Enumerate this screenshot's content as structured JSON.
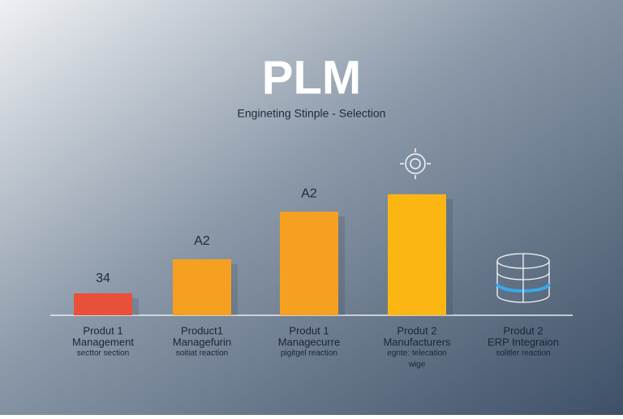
{
  "chart_data": {
    "type": "bar",
    "title": "PLM",
    "subtitle": "Engineting Stinple - Selection",
    "categories": [
      [
        "Produt 1",
        "Management",
        "secttor section"
      ],
      [
        "Product1",
        "Managefurin",
        "soitiat reaction"
      ],
      [
        "Produt 1",
        "Managecurre",
        "pigitgel reaction"
      ],
      [
        "Produt 2",
        "Manufacturers",
        "egnte: telecation",
        "wige"
      ],
      [
        "Produt 2",
        "ERP Integraion",
        "solitler reaction"
      ]
    ],
    "values": [
      34,
      87,
      161,
      188,
      null
    ],
    "value_labels": [
      "34",
      null,
      null,
      null,
      null
    ],
    "annotations": [
      "A2",
      "A2"
    ],
    "colors": [
      "#e8503a",
      "#f5a020",
      "#f5a020",
      "#fbb614",
      null
    ]
  }
}
